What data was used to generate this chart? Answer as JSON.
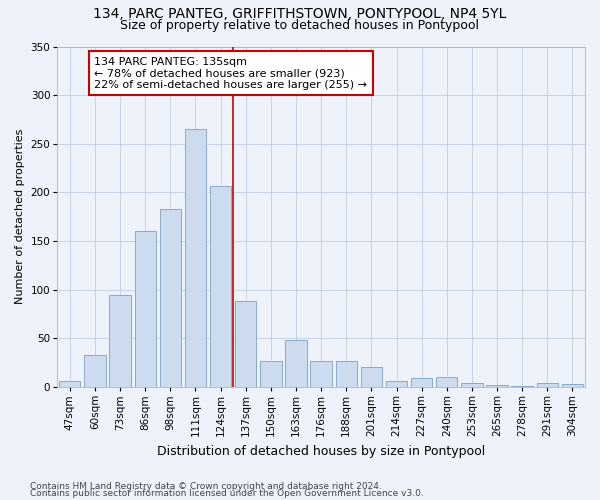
{
  "title": "134, PARC PANTEG, GRIFFITHSTOWN, PONTYPOOL, NP4 5YL",
  "subtitle": "Size of property relative to detached houses in Pontypool",
  "xlabel": "Distribution of detached houses by size in Pontypool",
  "ylabel": "Number of detached properties",
  "categories": [
    "47sqm",
    "60sqm",
    "73sqm",
    "86sqm",
    "98sqm",
    "111sqm",
    "124sqm",
    "137sqm",
    "150sqm",
    "163sqm",
    "176sqm",
    "188sqm",
    "201sqm",
    "214sqm",
    "227sqm",
    "240sqm",
    "253sqm",
    "265sqm",
    "278sqm",
    "291sqm",
    "304sqm"
  ],
  "values": [
    6,
    33,
    95,
    160,
    183,
    265,
    207,
    88,
    27,
    48,
    27,
    27,
    21,
    6,
    9,
    10,
    4,
    2,
    1,
    4,
    3
  ],
  "bar_color": "#ccdcee",
  "bar_edge_color": "#88aacc",
  "vline_index": 6.5,
  "vline_color": "#cc0000",
  "annotation_text": "134 PARC PANTEG: 135sqm\n← 78% of detached houses are smaller (923)\n22% of semi-detached houses are larger (255) →",
  "annotation_box_facecolor": "#ffffff",
  "annotation_box_edgecolor": "#cc0000",
  "background_color": "#eef2fb",
  "ylim": [
    0,
    350
  ],
  "yticks": [
    0,
    50,
    100,
    150,
    200,
    250,
    300,
    350
  ],
  "footer1": "Contains HM Land Registry data © Crown copyright and database right 2024.",
  "footer2": "Contains public sector information licensed under the Open Government Licence v3.0.",
  "title_fontsize": 10,
  "subtitle_fontsize": 9,
  "xlabel_fontsize": 9,
  "ylabel_fontsize": 8,
  "tick_fontsize": 7.5,
  "annotation_fontsize": 8,
  "footer_fontsize": 6.5
}
